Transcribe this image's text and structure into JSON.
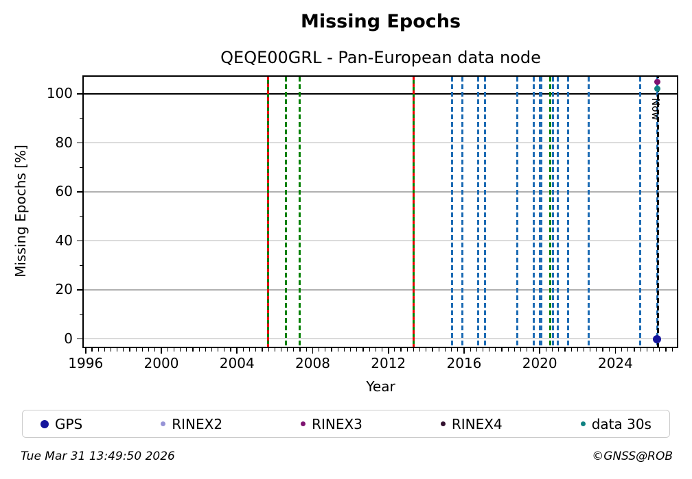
{
  "header": {
    "title": "Missing Epochs",
    "subtitle": "QEQE00GRL - Pan-European data node"
  },
  "footer": {
    "timestamp": "Tue Mar 31 13:49:50 2026",
    "credit": "©GNSS@ROB"
  },
  "chart_data": {
    "type": "scatter",
    "title": "Missing Epochs",
    "subtitle": "QEQE00GRL - Pan-European data node",
    "xlabel": "Year",
    "ylabel": "Missing Epochs [%]",
    "xlim": [
      1995.9,
      2027.25
    ],
    "ylim": [
      -3.2,
      107
    ],
    "xticks": [
      1996,
      2000,
      2004,
      2008,
      2012,
      2016,
      2020,
      2024
    ],
    "yticks": [
      0,
      20,
      40,
      60,
      80,
      100
    ],
    "x_minor_step_years": 0.33333,
    "y_minor_ticks": [
      10,
      30,
      50,
      70,
      90
    ],
    "grid": {
      "horizontal": true,
      "color": "#b0b0b0",
      "levels": [
        0,
        20,
        40,
        60,
        80,
        100
      ]
    },
    "hlines": [
      {
        "y": 100,
        "color": "#000000",
        "style": "solid"
      }
    ],
    "vlines": [
      {
        "x": 2005.65,
        "color": "#008000",
        "style": "solid",
        "overlay_color": "#e80000",
        "overlay_style": "dashed"
      },
      {
        "x": 2006.6,
        "color": "#008000",
        "style": "dashed"
      },
      {
        "x": 2007.3,
        "color": "#008000",
        "style": "dashed"
      },
      {
        "x": 2013.35,
        "color": "#008000",
        "style": "solid",
        "overlay_color": "#e80000",
        "overlay_style": "dashed"
      },
      {
        "x": 2015.35,
        "color": "#1c6bb4",
        "style": "dashed"
      },
      {
        "x": 2015.9,
        "color": "#1c6bb4",
        "style": "dashed"
      },
      {
        "x": 2016.75,
        "color": "#1c6bb4",
        "style": "dashed"
      },
      {
        "x": 2017.1,
        "color": "#1c6bb4",
        "style": "dashed"
      },
      {
        "x": 2018.8,
        "color": "#1c6bb4",
        "style": "dashed"
      },
      {
        "x": 2019.7,
        "color": "#1c6bb4",
        "style": "dashed"
      },
      {
        "x": 2020.0,
        "color": "#1c6bb4",
        "style": "dashed"
      },
      {
        "x": 2020.1,
        "color": "#1c6bb4",
        "style": "dashed"
      },
      {
        "x": 2020.55,
        "color": "#008000",
        "style": "dashed"
      },
      {
        "x": 2020.7,
        "color": "#1c6bb4",
        "style": "dashed"
      },
      {
        "x": 2020.95,
        "color": "#1c6bb4",
        "style": "dashed"
      },
      {
        "x": 2021.5,
        "color": "#1c6bb4",
        "style": "dashed"
      },
      {
        "x": 2022.6,
        "color": "#1c6bb4",
        "style": "dashed"
      },
      {
        "x": 2025.3,
        "color": "#1c6bb4",
        "style": "dashed"
      },
      {
        "x": 2026.2,
        "color": "#1c6bb4",
        "style": "dashed"
      }
    ],
    "now_line": {
      "x": 2026.25,
      "color": "#000000",
      "style": "dashed",
      "label": "Now"
    },
    "points": [
      {
        "series": "GPS",
        "x": 2026.2,
        "y": 0,
        "color": "#15159c",
        "size": 12
      },
      {
        "series": "RINEX3",
        "x": 2026.2,
        "y": 105,
        "color": "#7d1270",
        "size": 9
      },
      {
        "series": "data 30s",
        "x": 2026.2,
        "y": 102,
        "color": "#0e8181",
        "size": 9
      }
    ],
    "legend": {
      "position": "bottom",
      "items": [
        {
          "label": "GPS",
          "color": "#15159c",
          "marker_size": 12
        },
        {
          "label": "RINEX2",
          "color": "#9693d6",
          "marker_size": 7
        },
        {
          "label": "RINEX3",
          "color": "#7d1270",
          "marker_size": 7
        },
        {
          "label": "RINEX4",
          "color": "#31102e",
          "marker_size": 7
        },
        {
          "label": "data 30s",
          "color": "#0e8181",
          "marker_size": 7
        }
      ]
    }
  }
}
